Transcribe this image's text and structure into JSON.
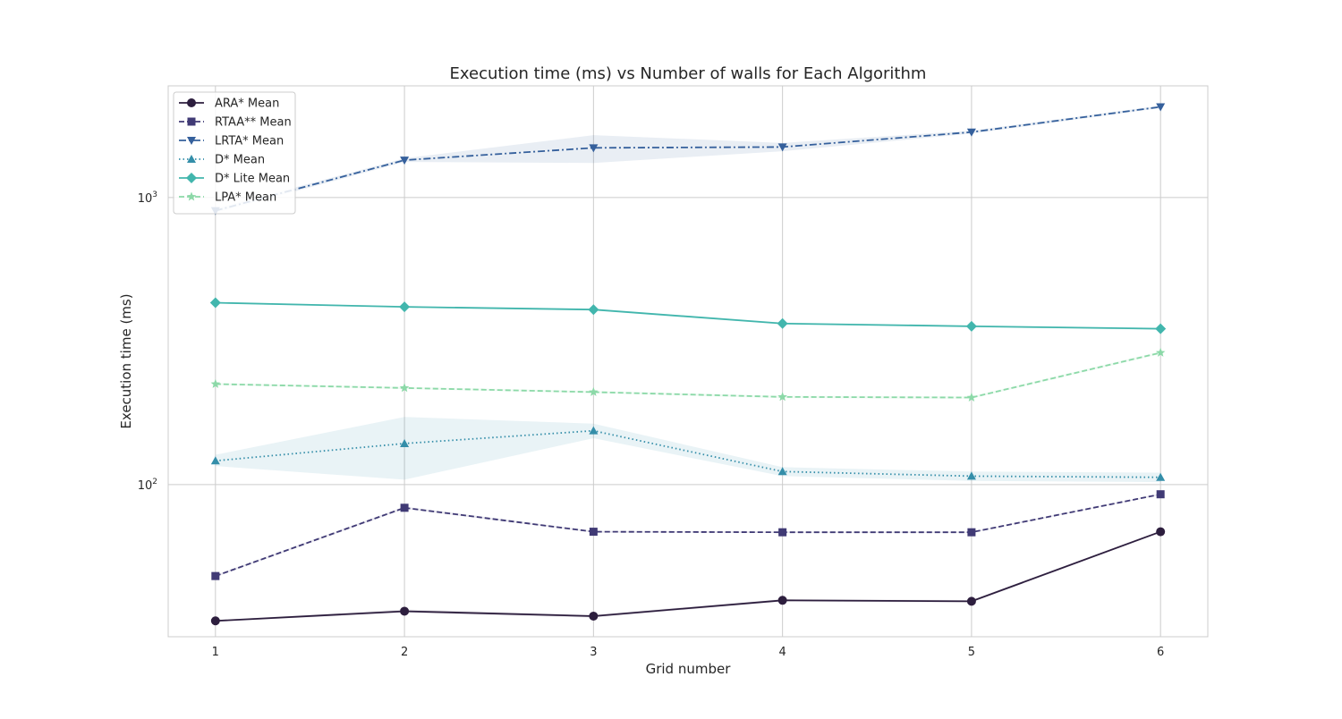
{
  "chart_data": {
    "type": "line",
    "title": "Execution time (ms) vs Number of walls for Each Algorithm",
    "xlabel": "Grid number",
    "ylabel": "Execution time (ms)",
    "x": [
      1,
      2,
      3,
      4,
      5,
      6
    ],
    "y_scale": "log",
    "ylim": [
      29.5,
      2450
    ],
    "xlim": [
      0.75,
      6.25
    ],
    "y_ticks": [
      {
        "value": 100,
        "base": "10",
        "exp": "2"
      },
      {
        "value": 1000,
        "base": "10",
        "exp": "3"
      }
    ],
    "grid": true,
    "legend_position": "upper-left",
    "series": [
      {
        "name": "ARA* Mean",
        "color": "#2d1e3e",
        "marker": "circle",
        "line_style": "solid",
        "values": [
          33.5,
          36.2,
          34.8,
          39.5,
          39.2,
          68.5
        ],
        "band_lower": [
          33.3,
          35.7,
          34.4,
          39.1,
          38.8,
          68.0
        ],
        "band_upper": [
          33.7,
          36.7,
          35.2,
          39.9,
          39.6,
          69.0
        ]
      },
      {
        "name": "RTAA** Mean",
        "color": "#403a75",
        "marker": "square",
        "line_style": "dashed",
        "values": [
          48,
          83,
          68.5,
          68.2,
          68.2,
          92.5
        ],
        "band_lower": [
          47.6,
          82.2,
          68.0,
          67.8,
          67.8,
          92.0
        ],
        "band_upper": [
          48.4,
          83.8,
          69.0,
          68.6,
          68.6,
          93.0
        ]
      },
      {
        "name": "LRTA* Mean",
        "color": "#35609c",
        "marker": "triangle-down",
        "line_style": "dashdot",
        "values": [
          900,
          1350,
          1490,
          1500,
          1690,
          2070
        ],
        "band_lower": [
          885,
          1330,
          1320,
          1450,
          1670,
          2050
        ],
        "band_upper": [
          915,
          1370,
          1650,
          1550,
          1710,
          2090
        ]
      },
      {
        "name": "D* Mean",
        "color": "#348ea9",
        "marker": "triangle-up",
        "line_style": "dotted",
        "values": [
          121,
          139,
          154,
          111,
          107,
          106
        ],
        "band_lower": [
          116,
          104,
          145,
          107,
          103,
          102
        ],
        "band_upper": [
          127,
          172,
          163,
          115,
          111,
          110
        ]
      },
      {
        "name": "D* Lite Mean",
        "color": "#42b6ad",
        "marker": "diamond",
        "line_style": "solid",
        "values": [
          430,
          416,
          407,
          364,
          356,
          349
        ],
        "band_lower": [
          428,
          413,
          404,
          361,
          353,
          346
        ],
        "band_upper": [
          432,
          419,
          410,
          367,
          359,
          352
        ]
      },
      {
        "name": "LPA* Mean",
        "color": "#8cd9a8",
        "marker": "star",
        "line_style": "dashed",
        "values": [
          224,
          217,
          210,
          202,
          201,
          288
        ],
        "band_lower": [
          222,
          215,
          208,
          200,
          199,
          285
        ],
        "band_upper": [
          226,
          219,
          212,
          204,
          203,
          291
        ]
      }
    ]
  }
}
